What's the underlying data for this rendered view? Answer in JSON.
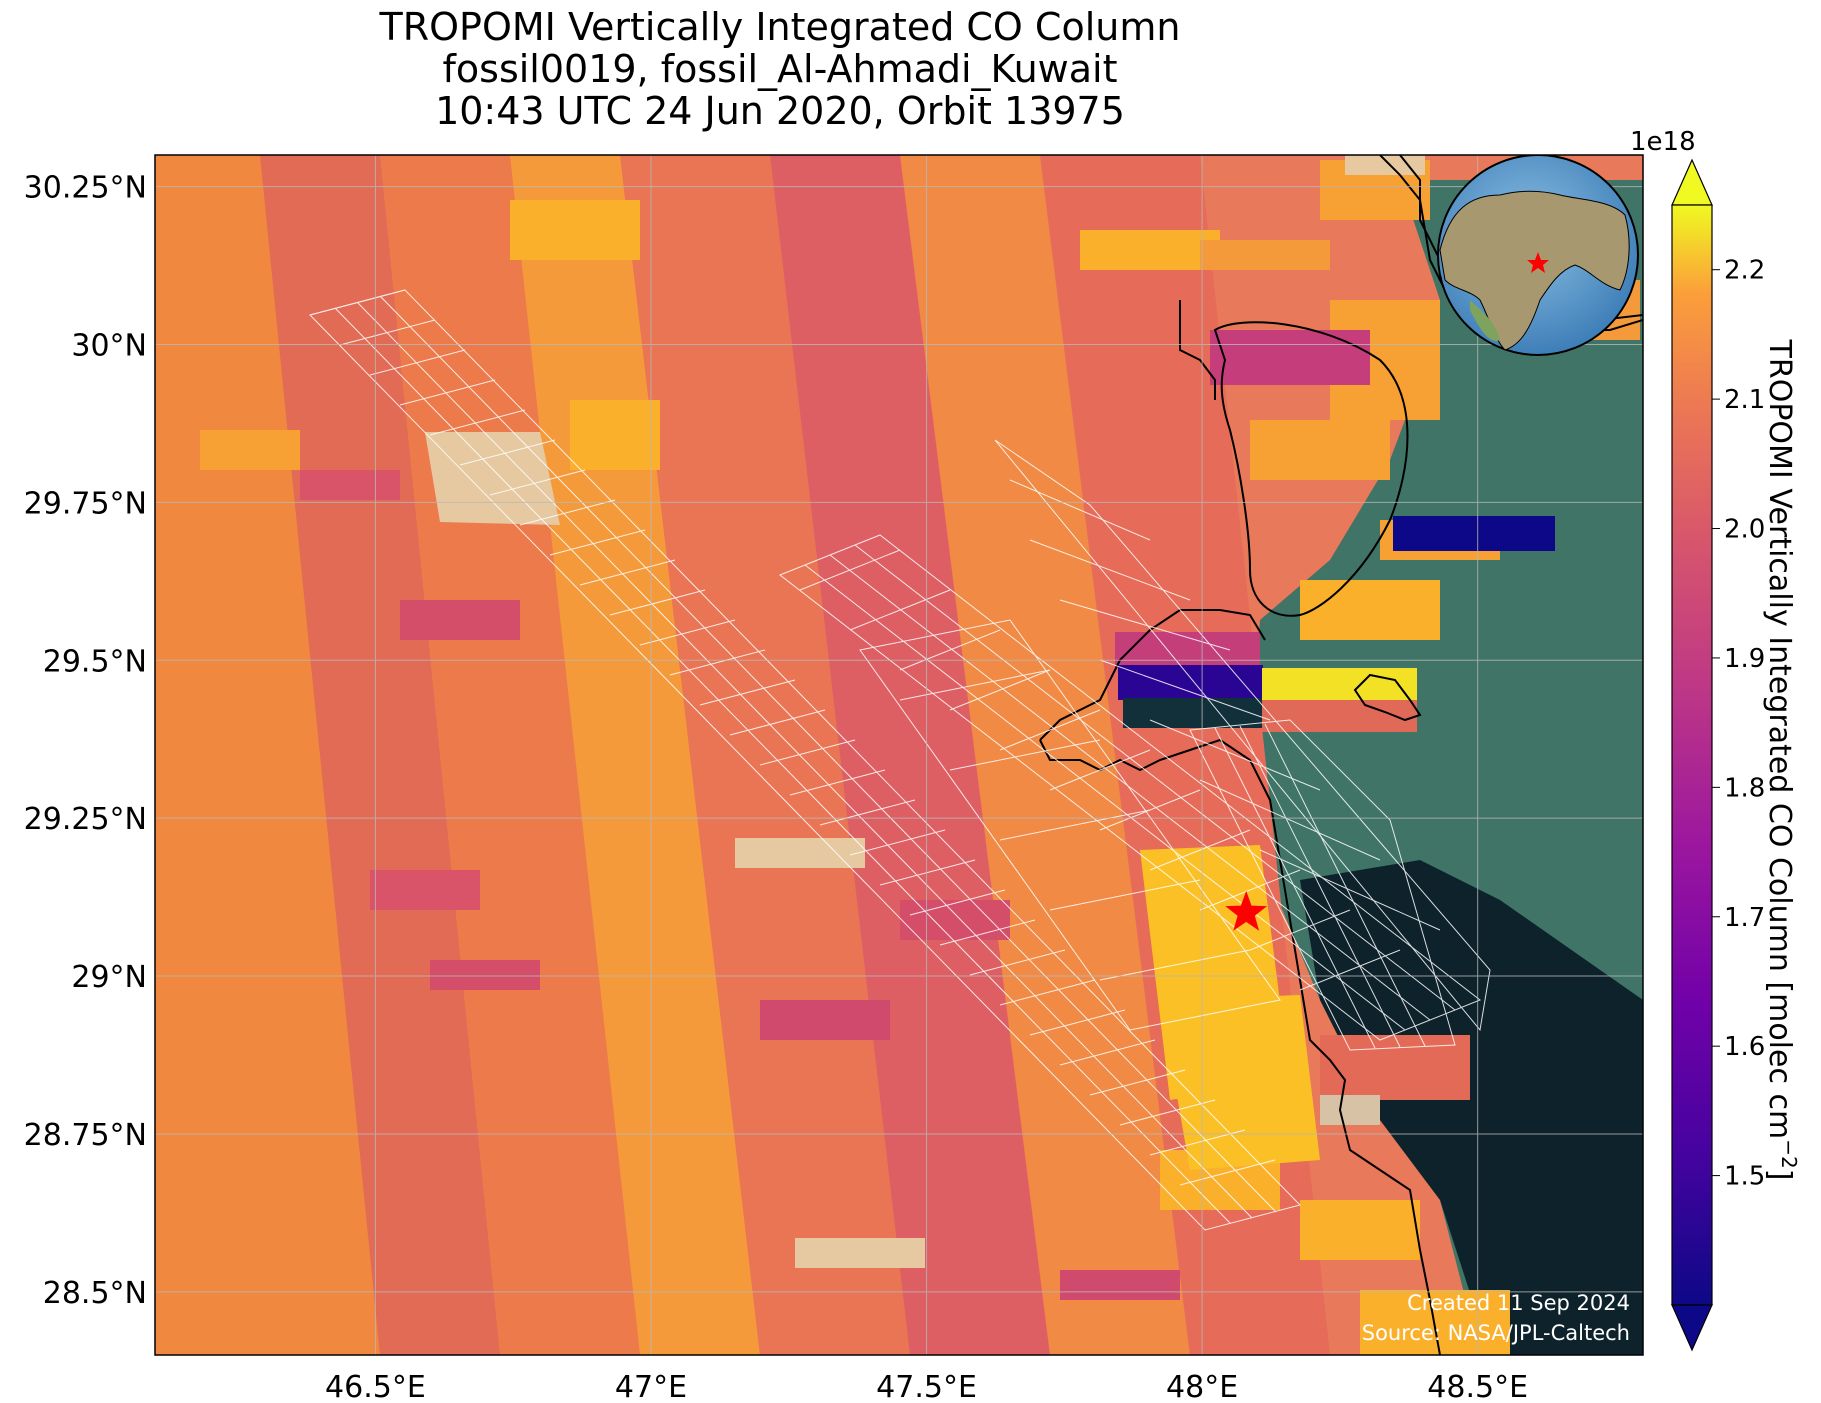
{
  "title": {
    "line1": "TROPOMI Vertically Integrated CO Column",
    "line2": "fossil0019, fossil_Al-Ahmadi_Kuwait",
    "line3": "10:43 UTC 24 Jun 2020, Orbit 13975"
  },
  "map": {
    "lon_range": [
      46.1,
      48.8
    ],
    "lat_range": [
      28.4,
      30.3
    ],
    "lon_ticks": [
      {
        "value": 46.5,
        "label": "46.5°E"
      },
      {
        "value": 47.0,
        "label": "47°E"
      },
      {
        "value": 47.5,
        "label": "47.5°E"
      },
      {
        "value": 48.0,
        "label": "48°E"
      },
      {
        "value": 48.5,
        "label": "48.5°E"
      }
    ],
    "lat_ticks": [
      {
        "value": 30.25,
        "label": "30.25°N"
      },
      {
        "value": 30.0,
        "label": "30°N"
      },
      {
        "value": 29.75,
        "label": "29.75°N"
      },
      {
        "value": 29.5,
        "label": "29.5°N"
      },
      {
        "value": 29.25,
        "label": "29.25°N"
      },
      {
        "value": 29.0,
        "label": "29°N"
      },
      {
        "value": 28.75,
        "label": "28.75°N"
      },
      {
        "value": 28.5,
        "label": "28.5°N"
      }
    ],
    "gridlines": true,
    "target_marker": {
      "name": "star-marker",
      "lon": 48.08,
      "lat": 29.1,
      "color": "#ff0000"
    },
    "inset_globe": {
      "marker_color": "#ff0000",
      "placement": "top-right"
    },
    "credit_line1": "Created 11 Sep 2024",
    "credit_line2": "Source: NASA/JPL-Caltech"
  },
  "colorbar": {
    "label": "TROPOMI Vertically Integrated CO Column [molec cm",
    "label_sup": "−2",
    "label_close": "]",
    "exponent": "1e18",
    "range": [
      1.4,
      2.25
    ],
    "colormap": "plasma",
    "ticks": [
      {
        "value": 2.2,
        "label": "2.2"
      },
      {
        "value": 2.1,
        "label": "2.1"
      },
      {
        "value": 2.0,
        "label": "2.0"
      },
      {
        "value": 1.9,
        "label": "1.9"
      },
      {
        "value": 1.8,
        "label": "1.8"
      },
      {
        "value": 1.7,
        "label": "1.7"
      },
      {
        "value": 1.6,
        "label": "1.6"
      },
      {
        "value": 1.5,
        "label": "1.5"
      }
    ]
  },
  "colors": {
    "land_background": "#e8795a",
    "sea_shallow": "#3b6f66",
    "sea_deep": "#0e222c",
    "coastline": "#000000",
    "grid_overlay": "#ffffff"
  }
}
